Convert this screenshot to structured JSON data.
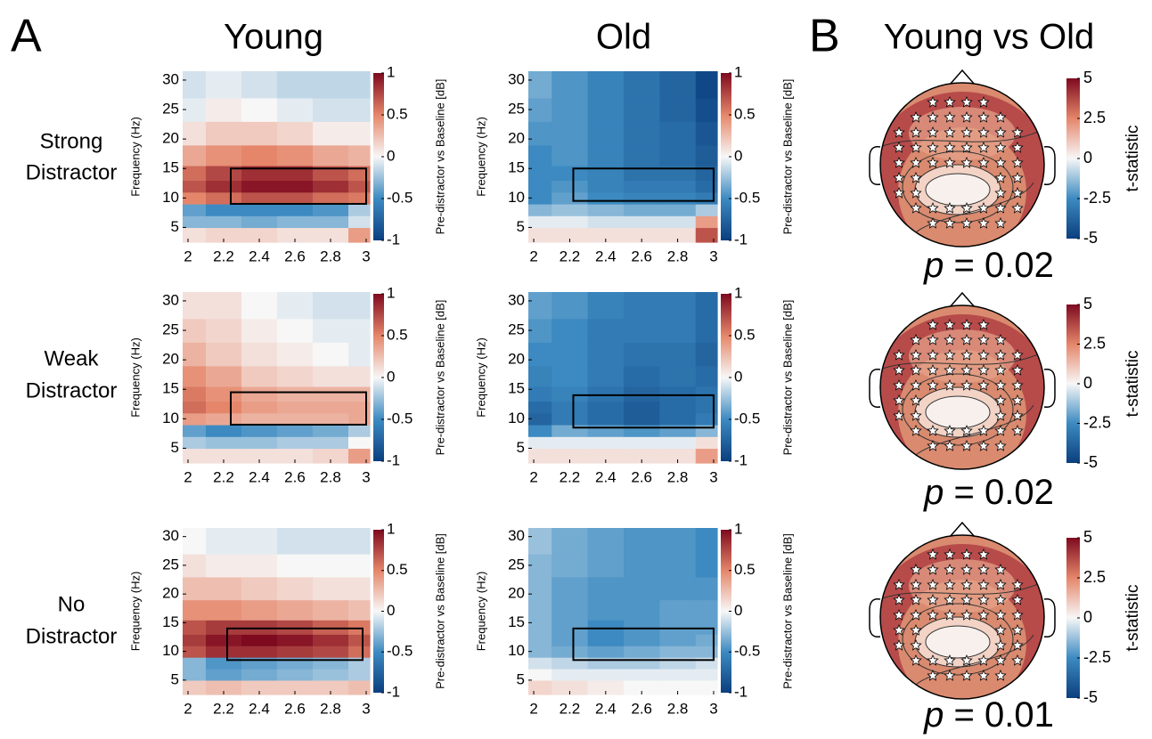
{
  "panel_labels": [
    "A",
    "B"
  ],
  "column_titles": [
    "Young",
    "Old",
    "Young vs Old"
  ],
  "row_labels": [
    [
      "Strong",
      "Distractor"
    ],
    [
      "Weak",
      "Distractor"
    ],
    [
      "No",
      "Distractor"
    ]
  ],
  "colormap": [
    "#0b3f7f",
    "#3c8ac1",
    "#f7f7f7",
    "#e5866a",
    "#7e0a1f"
  ],
  "chart_data": [
    {
      "type": "heatmap",
      "group": "Young",
      "ylabel": "Frequency (Hz)",
      "colorbar_label": "Pre-distractor vs Baseline [dB]",
      "x": [
        2,
        2.2,
        2.4,
        2.6,
        2.8,
        3
      ],
      "y": [
        4,
        6,
        8,
        10,
        12,
        14,
        17,
        21,
        25,
        29
      ],
      "z": [
        [
          0.1,
          0.15,
          0.15,
          0.1,
          0.1,
          0.4
        ],
        [
          -0.3,
          -0.3,
          -0.35,
          -0.3,
          -0.3,
          -0.1
        ],
        [
          -0.4,
          -0.5,
          -0.5,
          -0.5,
          -0.45,
          -0.2
        ],
        [
          0.5,
          0.6,
          0.7,
          0.7,
          0.6,
          0.55
        ],
        [
          0.7,
          0.85,
          0.95,
          0.95,
          0.85,
          0.7
        ],
        [
          0.6,
          0.75,
          0.85,
          0.85,
          0.7,
          0.6
        ],
        [
          0.35,
          0.45,
          0.5,
          0.45,
          0.35,
          0.3
        ],
        [
          0.1,
          0.2,
          0.2,
          0.15,
          0.05,
          0.05
        ],
        [
          -0.05,
          0.05,
          0,
          -0.05,
          -0.1,
          -0.1
        ],
        [
          -0.1,
          -0.05,
          -0.1,
          -0.15,
          -0.15,
          -0.15
        ]
      ],
      "xlim": [
        1.97,
        3.02
      ],
      "ylim": [
        2.5,
        31.5
      ],
      "xticks": [
        2,
        2.2,
        2.4,
        2.6,
        2.8,
        3
      ],
      "yticks": [
        5,
        10,
        15,
        20,
        25,
        30
      ],
      "clim": [
        -1,
        1
      ],
      "cticks": [
        -1,
        -0.5,
        0,
        0.5,
        1
      ],
      "box": {
        "x": [
          2.24,
          3
        ],
        "y": [
          9,
          15
        ]
      }
    },
    {
      "type": "heatmap",
      "group": "Old",
      "ylabel": "Frequency (Hz)",
      "colorbar_label": "Pre-distractor vs Baseline [dB]",
      "x": [
        2,
        2.2,
        2.4,
        2.6,
        2.8,
        3
      ],
      "y": [
        4,
        6,
        8,
        10,
        12,
        14,
        17,
        21,
        25,
        29
      ],
      "z": [
        [
          0.1,
          0.1,
          0.1,
          0.1,
          0.1,
          0.7
        ],
        [
          -0.05,
          -0.05,
          -0.1,
          -0.1,
          -0.1,
          0.4
        ],
        [
          -0.3,
          -0.25,
          -0.3,
          -0.35,
          -0.35,
          -0.2
        ],
        [
          -0.5,
          -0.4,
          -0.5,
          -0.55,
          -0.55,
          -0.6
        ],
        [
          -0.5,
          -0.45,
          -0.55,
          -0.6,
          -0.6,
          -0.7
        ],
        [
          -0.5,
          -0.5,
          -0.55,
          -0.65,
          -0.65,
          -0.75
        ],
        [
          -0.5,
          -0.45,
          -0.55,
          -0.65,
          -0.7,
          -0.8
        ],
        [
          -0.45,
          -0.45,
          -0.55,
          -0.65,
          -0.7,
          -0.85
        ],
        [
          -0.4,
          -0.45,
          -0.55,
          -0.65,
          -0.75,
          -0.9
        ],
        [
          -0.35,
          -0.45,
          -0.55,
          -0.65,
          -0.75,
          -0.95
        ]
      ],
      "xlim": [
        1.97,
        3.02
      ],
      "ylim": [
        2.5,
        31.5
      ],
      "xticks": [
        2,
        2.2,
        2.4,
        2.6,
        2.8,
        3
      ],
      "yticks": [
        5,
        10,
        15,
        20,
        25,
        30
      ],
      "clim": [
        -1,
        1
      ],
      "cticks": [
        -1,
        -0.5,
        0,
        0.5,
        1
      ],
      "box": {
        "x": [
          2.22,
          3
        ],
        "y": [
          9.5,
          15
        ]
      }
    },
    {
      "type": "heatmap",
      "group": "Young",
      "ylabel": "Frequency (Hz)",
      "colorbar_label": "Pre-distractor vs Baseline [dB]",
      "x": [
        2,
        2.2,
        2.4,
        2.6,
        2.8,
        3
      ],
      "y": [
        4,
        6,
        8,
        10,
        12,
        14,
        17,
        21,
        25,
        29
      ],
      "z": [
        [
          0.1,
          0.1,
          0.1,
          0.1,
          0.15,
          0.4
        ],
        [
          -0.2,
          -0.25,
          -0.25,
          -0.2,
          -0.2,
          0
        ],
        [
          -0.4,
          -0.5,
          -0.45,
          -0.4,
          -0.35,
          -0.2
        ],
        [
          0.4,
          0.35,
          0.3,
          0.3,
          0.3,
          0.35
        ],
        [
          0.6,
          0.5,
          0.4,
          0.35,
          0.35,
          0.35
        ],
        [
          0.55,
          0.45,
          0.35,
          0.3,
          0.3,
          0.3
        ],
        [
          0.45,
          0.35,
          0.2,
          0.15,
          0.1,
          0.1
        ],
        [
          0.3,
          0.2,
          0.1,
          0.05,
          0,
          -0.05
        ],
        [
          0.2,
          0.15,
          0.05,
          0,
          -0.05,
          -0.05
        ],
        [
          0.1,
          0.1,
          0,
          -0.05,
          -0.1,
          -0.1
        ]
      ],
      "xlim": [
        1.97,
        3.02
      ],
      "ylim": [
        2.5,
        31.5
      ],
      "xticks": [
        2,
        2.2,
        2.4,
        2.6,
        2.8,
        3
      ],
      "yticks": [
        5,
        10,
        15,
        20,
        25,
        30
      ],
      "clim": [
        -1,
        1
      ],
      "cticks": [
        -1,
        -0.5,
        0,
        0.5,
        1
      ],
      "box": {
        "x": [
          2.24,
          3
        ],
        "y": [
          9,
          14.5
        ]
      }
    },
    {
      "type": "heatmap",
      "group": "Old",
      "ylabel": "Frequency (Hz)",
      "colorbar_label": "Pre-distractor vs Baseline [dB]",
      "x": [
        2,
        2.2,
        2.4,
        2.6,
        2.8,
        3
      ],
      "y": [
        4,
        6,
        8,
        10,
        12,
        14,
        17,
        21,
        25,
        29
      ],
      "z": [
        [
          0.1,
          0.1,
          0.1,
          0.1,
          0.1,
          0.4
        ],
        [
          -0.05,
          -0.05,
          -0.05,
          -0.05,
          -0.05,
          0.1
        ],
        [
          -0.5,
          -0.35,
          -0.4,
          -0.45,
          -0.4,
          -0.3
        ],
        [
          -0.75,
          -0.6,
          -0.7,
          -0.8,
          -0.7,
          -0.6
        ],
        [
          -0.7,
          -0.6,
          -0.7,
          -0.8,
          -0.7,
          -0.65
        ],
        [
          -0.6,
          -0.55,
          -0.65,
          -0.75,
          -0.7,
          -0.65
        ],
        [
          -0.55,
          -0.5,
          -0.6,
          -0.7,
          -0.65,
          -0.7
        ],
        [
          -0.5,
          -0.5,
          -0.6,
          -0.65,
          -0.65,
          -0.75
        ],
        [
          -0.45,
          -0.5,
          -0.6,
          -0.6,
          -0.6,
          -0.7
        ],
        [
          -0.4,
          -0.45,
          -0.55,
          -0.6,
          -0.6,
          -0.7
        ]
      ],
      "xlim": [
        1.97,
        3.02
      ],
      "ylim": [
        2.5,
        31.5
      ],
      "xticks": [
        2,
        2.2,
        2.4,
        2.6,
        2.8,
        3
      ],
      "yticks": [
        5,
        10,
        15,
        20,
        25,
        30
      ],
      "clim": [
        -1,
        1
      ],
      "cticks": [
        -1,
        -0.5,
        0,
        0.5,
        1
      ],
      "box": {
        "x": [
          2.22,
          3
        ],
        "y": [
          8.5,
          14
        ]
      }
    },
    {
      "type": "heatmap",
      "group": "Young",
      "ylabel": "Frequency (Hz)",
      "colorbar_label": "Pre-distractor vs Baseline [dB]",
      "x": [
        2,
        2.2,
        2.4,
        2.6,
        2.8,
        3
      ],
      "y": [
        4,
        6,
        8,
        10,
        12,
        14,
        17,
        21,
        25,
        29
      ],
      "z": [
        [
          0.2,
          0.25,
          0.2,
          0.2,
          0.2,
          0.25
        ],
        [
          -0.3,
          -0.4,
          -0.35,
          -0.3,
          -0.25,
          -0.2
        ],
        [
          -0.3,
          -0.45,
          -0.4,
          -0.35,
          -0.3,
          -0.2
        ],
        [
          0.7,
          0.85,
          0.85,
          0.8,
          0.75,
          0.6
        ],
        [
          0.8,
          0.95,
          1,
          0.95,
          0.85,
          0.7
        ],
        [
          0.7,
          0.8,
          0.8,
          0.75,
          0.65,
          0.55
        ],
        [
          0.45,
          0.45,
          0.4,
          0.35,
          0.3,
          0.25
        ],
        [
          0.25,
          0.25,
          0.2,
          0.15,
          0.1,
          0.1
        ],
        [
          0.1,
          0.05,
          0.05,
          0,
          0,
          0
        ],
        [
          0,
          -0.05,
          -0.05,
          -0.1,
          -0.1,
          -0.1
        ]
      ],
      "xlim": [
        1.97,
        3.02
      ],
      "ylim": [
        2.5,
        31.5
      ],
      "xticks": [
        2,
        2.2,
        2.4,
        2.6,
        2.8,
        3
      ],
      "yticks": [
        5,
        10,
        15,
        20,
        25,
        30
      ],
      "clim": [
        -1,
        1
      ],
      "cticks": [
        -1,
        -0.5,
        0,
        0.5,
        1
      ],
      "box": {
        "x": [
          2.22,
          2.98
        ],
        "y": [
          8.5,
          14
        ]
      }
    },
    {
      "type": "heatmap",
      "group": "Old",
      "ylabel": "Frequency (Hz)",
      "colorbar_label": "Pre-distractor vs Baseline [dB]",
      "x": [
        2,
        2.2,
        2.4,
        2.6,
        2.8,
        3
      ],
      "y": [
        4,
        6,
        8,
        10,
        12,
        14,
        17,
        21,
        25,
        29
      ],
      "z": [
        [
          0.15,
          0.1,
          0.05,
          0,
          0,
          0
        ],
        [
          0,
          -0.05,
          -0.05,
          -0.05,
          -0.05,
          -0.05
        ],
        [
          -0.1,
          -0.15,
          -0.2,
          -0.2,
          -0.15,
          -0.1
        ],
        [
          -0.3,
          -0.35,
          -0.4,
          -0.35,
          -0.3,
          -0.3
        ],
        [
          -0.3,
          -0.4,
          -0.5,
          -0.45,
          -0.4,
          -0.35
        ],
        [
          -0.3,
          -0.4,
          -0.5,
          -0.45,
          -0.4,
          -0.4
        ],
        [
          -0.3,
          -0.4,
          -0.45,
          -0.45,
          -0.4,
          -0.4
        ],
        [
          -0.3,
          -0.4,
          -0.45,
          -0.45,
          -0.45,
          -0.45
        ],
        [
          -0.3,
          -0.35,
          -0.4,
          -0.45,
          -0.45,
          -0.5
        ],
        [
          -0.25,
          -0.35,
          -0.4,
          -0.45,
          -0.45,
          -0.5
        ]
      ],
      "xlim": [
        1.97,
        3.02
      ],
      "ylim": [
        2.5,
        31.5
      ],
      "xticks": [
        2,
        2.2,
        2.4,
        2.6,
        2.8,
        3
      ],
      "yticks": [
        5,
        10,
        15,
        20,
        25,
        30
      ],
      "clim": [
        -1,
        1
      ],
      "cticks": [
        -1,
        -0.5,
        0,
        0.5,
        1
      ],
      "box": {
        "x": [
          2.22,
          3
        ],
        "y": [
          8.5,
          14
        ]
      }
    }
  ],
  "topomaps": [
    {
      "clim": [
        -5,
        5
      ],
      "cticks": [
        -5,
        -2.5,
        0,
        2.5,
        5
      ],
      "colorbar_label": "t-statistic",
      "p_label": "p",
      "p_value": "= 0.02"
    },
    {
      "clim": [
        -5,
        5
      ],
      "cticks": [
        -5,
        -2.5,
        0,
        2.5,
        5
      ],
      "colorbar_label": "t-statistic",
      "p_label": "p",
      "p_value": "= 0.02"
    },
    {
      "clim": [
        -5,
        5
      ],
      "cticks": [
        -5,
        -2.5,
        0,
        2.5,
        5
      ],
      "colorbar_label": "t-statistic",
      "p_label": "p",
      "p_value": "= 0.01"
    }
  ]
}
